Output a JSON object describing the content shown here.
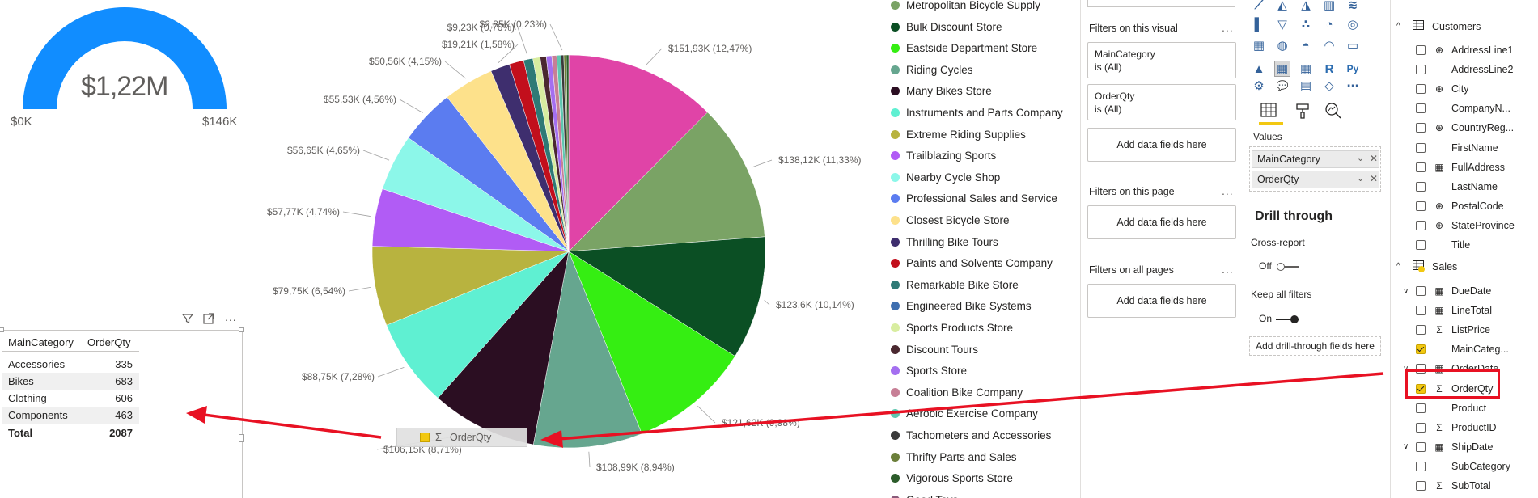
{
  "gauge": {
    "value": "$1,22M",
    "min": "$0K",
    "max": "$146K",
    "color": "#118dff"
  },
  "table": {
    "headers": [
      "MainCategory",
      "OrderQty"
    ],
    "rows": [
      {
        "cat": "Accessories",
        "qty": "335"
      },
      {
        "cat": "Bikes",
        "qty": "683"
      },
      {
        "cat": "Clothing",
        "qty": "606"
      },
      {
        "cat": "Components",
        "qty": "463"
      }
    ],
    "total_label": "Total",
    "total_value": "2087"
  },
  "drag_ghost": {
    "label": "OrderQty"
  },
  "chart_data": {
    "type": "pie",
    "title": "",
    "slices": [
      {
        "label": "$151,93K (12,47%)",
        "value": 12.47,
        "color": "#e044a7"
      },
      {
        "label": "$138,12K (11,33%)",
        "value": 11.33,
        "color": "#7aa365"
      },
      {
        "label": "$123,6K (10,14%)",
        "value": 10.14,
        "color": "#0b4f24"
      },
      {
        "label": "$121,62K (9,98%)",
        "value": 9.98,
        "color": "#35ee12"
      },
      {
        "label": "$108,99K (8,94%)",
        "value": 8.94,
        "color": "#66a68f"
      },
      {
        "label": "$106,15K (8,71%)",
        "value": 8.71,
        "color": "#2b0e22"
      },
      {
        "label": "$88,75K (7,28%)",
        "value": 7.28,
        "color": "#5ff0d2"
      },
      {
        "label": "$79,75K (6,54%)",
        "value": 6.54,
        "color": "#b8b33f"
      },
      {
        "label": "$57,77K (4,74%)",
        "value": 4.74,
        "color": "#b15cf5"
      },
      {
        "label": "$56,65K (4,65%)",
        "value": 4.65,
        "color": "#8cf7e9"
      },
      {
        "label": "$55,53K (4,56%)",
        "value": 4.56,
        "color": "#5b7cf0"
      },
      {
        "label": "$50,56K (4,15%)",
        "value": 4.15,
        "color": "#fde18b"
      },
      {
        "label": "$19,21K (1,58%)",
        "value": 1.58,
        "color": "#3e2e6e"
      },
      {
        "label": "",
        "value": 1.2,
        "color": "#c20f1c"
      },
      {
        "label": "$9,23K (0,76%)",
        "value": 0.76,
        "color": "#2e7a76"
      },
      {
        "label": "",
        "value": 0.6,
        "color": "#d8eda0"
      },
      {
        "label": "",
        "value": 0.5,
        "color": "#4a2830"
      },
      {
        "label": "",
        "value": 0.45,
        "color": "#a46ff0"
      },
      {
        "label": "",
        "value": 0.4,
        "color": "#c77f96"
      },
      {
        "label": "",
        "value": 0.35,
        "color": "#5fc7b0"
      },
      {
        "label": "$2,85K (0,23%)",
        "value": 0.23,
        "color": "#3a3a3a"
      },
      {
        "label": "",
        "value": 0.2,
        "color": "#6b7f3a"
      },
      {
        "label": "",
        "value": 0.2,
        "color": "#2c5c2a"
      }
    ]
  },
  "legend": [
    {
      "name": "Metropolitan Bicycle Supply",
      "color": "#7aa365"
    },
    {
      "name": "Bulk Discount Store",
      "color": "#0b4f24"
    },
    {
      "name": "Eastside Department Store",
      "color": "#35ee12"
    },
    {
      "name": "Riding Cycles",
      "color": "#66a68f"
    },
    {
      "name": "Many Bikes Store",
      "color": "#2b0e22"
    },
    {
      "name": "Instruments and Parts Company",
      "color": "#5ff0d2"
    },
    {
      "name": "Extreme Riding Supplies",
      "color": "#b8b33f"
    },
    {
      "name": "Trailblazing Sports",
      "color": "#b15cf5"
    },
    {
      "name": "Nearby Cycle Shop",
      "color": "#8cf7e9"
    },
    {
      "name": "Professional Sales and Service",
      "color": "#5b7cf0"
    },
    {
      "name": "Closest Bicycle Store",
      "color": "#fde18b"
    },
    {
      "name": "Thrilling Bike Tours",
      "color": "#3e2e6e"
    },
    {
      "name": "Paints and Solvents Company",
      "color": "#c20f1c"
    },
    {
      "name": "Remarkable Bike Store",
      "color": "#2e7a76"
    },
    {
      "name": "Engineered Bike Systems",
      "color": "#3f6fb0"
    },
    {
      "name": "Sports Products Store",
      "color": "#d8eda0"
    },
    {
      "name": "Discount Tours",
      "color": "#4a2830"
    },
    {
      "name": "Sports Store",
      "color": "#a46ff0"
    },
    {
      "name": "Coalition Bike Company",
      "color": "#c77f96"
    },
    {
      "name": "Aerobic Exercise Company",
      "color": "#5fc7b0"
    },
    {
      "name": "Tachometers and Accessories",
      "color": "#3a3a3a"
    },
    {
      "name": "Thrifty Parts and Sales",
      "color": "#6b7f3a"
    },
    {
      "name": "Vigorous Sports Store",
      "color": "#2c5c2a"
    },
    {
      "name": "Good Toys",
      "color": "#8a5a7a"
    }
  ],
  "filters": {
    "visual_title": "Filters on this visual",
    "card1_line1": "MainCategory",
    "card1_line2": "is (All)",
    "card2_line1": "OrderQty",
    "card2_line2": "is (All)",
    "add_visual": "Add data fields here",
    "page_title": "Filters on this page",
    "add_page": "Add data fields here",
    "all_title": "Filters on all pages",
    "add_all": "Add data fields here",
    "ellipsis": "..."
  },
  "viz": {
    "values_label": "Values",
    "well1": "MainCategory",
    "well2": "OrderQty",
    "drill_title": "Drill through",
    "cross_report": "Cross-report",
    "off_label": "Off",
    "keep_filters": "Keep all filters",
    "on_label": "On",
    "add_drill": "Add drill-through fields here"
  },
  "fields": {
    "customers_table": "Customers",
    "customers": [
      {
        "name": "AddressLine1",
        "type": "globe"
      },
      {
        "name": "AddressLine2",
        "type": ""
      },
      {
        "name": "City",
        "type": "globe"
      },
      {
        "name": "CompanyN...",
        "type": ""
      },
      {
        "name": "CountryReg...",
        "type": "globe"
      },
      {
        "name": "FirstName",
        "type": ""
      },
      {
        "name": "FullAddress",
        "type": "calc"
      },
      {
        "name": "LastName",
        "type": ""
      },
      {
        "name": "PostalCode",
        "type": "globe"
      },
      {
        "name": "StateProvince",
        "type": "globe"
      },
      {
        "name": "Title",
        "type": ""
      }
    ],
    "sales_table": "Sales",
    "sales": [
      {
        "name": "DueDate",
        "type": "date",
        "expand": true
      },
      {
        "name": "LineTotal",
        "type": "calc"
      },
      {
        "name": "ListPrice",
        "type": "sigma"
      },
      {
        "name": "MainCateg...",
        "type": "",
        "checked": true
      },
      {
        "name": "OrderDate",
        "type": "date",
        "expand": true
      },
      {
        "name": "OrderQty",
        "type": "sigma",
        "checked": true,
        "highlight": true
      },
      {
        "name": "Product",
        "type": ""
      },
      {
        "name": "ProductID",
        "type": "sigma"
      },
      {
        "name": "ShipDate",
        "type": "date",
        "expand": true
      },
      {
        "name": "SubCategory",
        "type": ""
      },
      {
        "name": "SubTotal",
        "type": "sigma"
      }
    ]
  },
  "colors": {
    "accent": "#f2c811",
    "annotation": "#e81123"
  }
}
